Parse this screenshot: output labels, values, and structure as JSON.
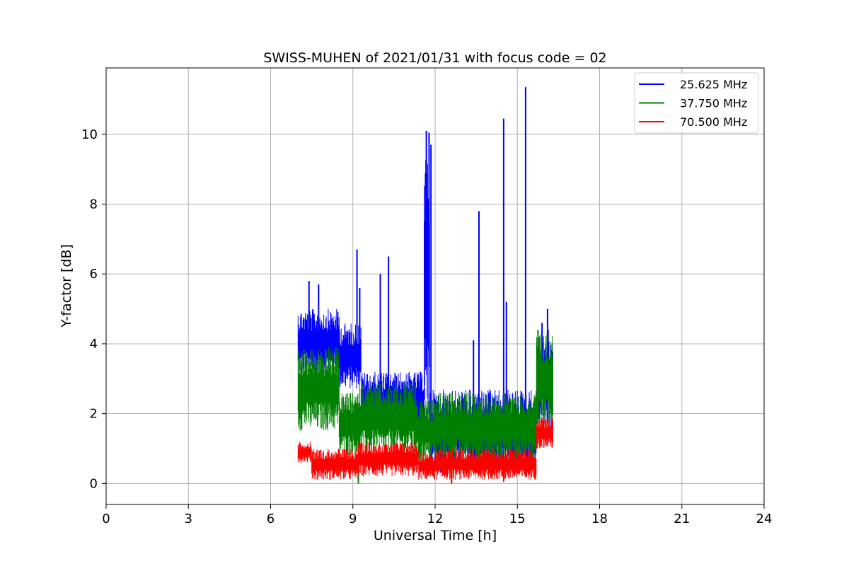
{
  "chart_data": {
    "type": "line",
    "title": "SWISS-MUHEN of 2021/01/31 with focus code = 02",
    "xlabel": "Universal Time [h]",
    "ylabel": "Y-factor [dB]",
    "xlim": [
      0,
      24
    ],
    "ylim": [
      -0.6,
      11.9
    ],
    "xticks": [
      0,
      3,
      6,
      9,
      12,
      15,
      18,
      21,
      24
    ],
    "yticks": [
      0,
      2,
      4,
      6,
      8,
      10
    ],
    "grid": true,
    "legend_position": "top-right",
    "series": [
      {
        "name": "25.625 MHz",
        "color": "#0000ff",
        "segments": [
          {
            "x": [
              7.0,
              8.5
            ],
            "low": 3.1,
            "high": 5.0
          },
          {
            "x": [
              8.5,
              9.3
            ],
            "low": 2.7,
            "high": 4.6
          },
          {
            "x": [
              9.3,
              11.6
            ],
            "low": 1.5,
            "high": 3.2
          },
          {
            "x": [
              11.6,
              11.8
            ],
            "low": 1.5,
            "high": 9.8
          },
          {
            "x": [
              11.8,
              15.7
            ],
            "low": 0.3,
            "high": 2.7
          },
          {
            "x": [
              15.7,
              16.3
            ],
            "low": 1.5,
            "high": 4.4
          }
        ],
        "spikes": [
          {
            "x": 7.4,
            "y": 5.8
          },
          {
            "x": 7.75,
            "y": 5.7
          },
          {
            "x": 9.15,
            "y": 6.7
          },
          {
            "x": 9.25,
            "y": 5.6
          },
          {
            "x": 10.0,
            "y": 6.0
          },
          {
            "x": 10.3,
            "y": 6.5
          },
          {
            "x": 11.68,
            "y": 10.1
          },
          {
            "x": 11.78,
            "y": 10.05
          },
          {
            "x": 11.85,
            "y": 9.7
          },
          {
            "x": 13.4,
            "y": 4.1
          },
          {
            "x": 13.6,
            "y": 7.8
          },
          {
            "x": 14.5,
            "y": 10.45
          },
          {
            "x": 14.6,
            "y": 5.2
          },
          {
            "x": 15.3,
            "y": 11.35
          },
          {
            "x": 15.9,
            "y": 4.6
          },
          {
            "x": 16.1,
            "y": 5.0
          }
        ]
      },
      {
        "name": "37.750 MHz",
        "color": "#008000",
        "segments": [
          {
            "x": [
              7.0,
              8.5
            ],
            "low": 1.5,
            "high": 3.9
          },
          {
            "x": [
              8.5,
              9.2
            ],
            "low": 0.8,
            "high": 2.6
          },
          {
            "x": [
              9.2,
              11.3
            ],
            "low": 0.8,
            "high": 2.9
          },
          {
            "x": [
              11.3,
              12.0
            ],
            "low": 0.6,
            "high": 2.4
          },
          {
            "x": [
              12.0,
              15.7
            ],
            "low": 0.6,
            "high": 2.6
          },
          {
            "x": [
              15.7,
              16.3
            ],
            "low": 1.6,
            "high": 4.3
          }
        ],
        "spikes": [
          {
            "x": 9.2,
            "y": 0.0
          },
          {
            "x": 12.6,
            "y": 0.0
          },
          {
            "x": 15.75,
            "y": 4.4
          }
        ]
      },
      {
        "name": "70.500 MHz",
        "color": "#ff0000",
        "segments": [
          {
            "x": [
              7.0,
              7.5
            ],
            "low": 0.6,
            "high": 1.2
          },
          {
            "x": [
              7.5,
              9.2
            ],
            "low": 0.1,
            "high": 1.0
          },
          {
            "x": [
              9.2,
              11.4
            ],
            "low": 0.2,
            "high": 1.2
          },
          {
            "x": [
              11.4,
              12.0
            ],
            "low": 0.1,
            "high": 0.9
          },
          {
            "x": [
              12.0,
              15.7
            ],
            "low": 0.1,
            "high": 1.0
          },
          {
            "x": [
              15.7,
              16.3
            ],
            "low": 1.0,
            "high": 1.9
          }
        ],
        "spikes": [
          {
            "x": 12.6,
            "y": 0.0
          },
          {
            "x": 14.5,
            "y": 0.05
          }
        ]
      }
    ]
  }
}
